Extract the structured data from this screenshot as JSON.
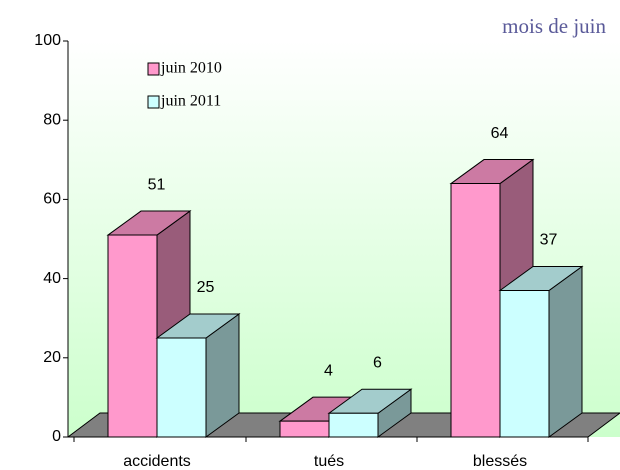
{
  "chart_data": {
    "type": "bar3d",
    "title": "mois de juin",
    "categories": [
      "accidents",
      "tués",
      "blessés"
    ],
    "series": [
      {
        "name": "juin 2010",
        "color": "#ff99cc",
        "values": [
          51,
          4,
          64
        ]
      },
      {
        "name": "juin 2011",
        "color": "#ccffff",
        "values": [
          25,
          6,
          37
        ]
      }
    ],
    "ylim": [
      0,
      100
    ],
    "yticks": [
      0,
      20,
      40,
      60,
      80,
      100
    ]
  }
}
